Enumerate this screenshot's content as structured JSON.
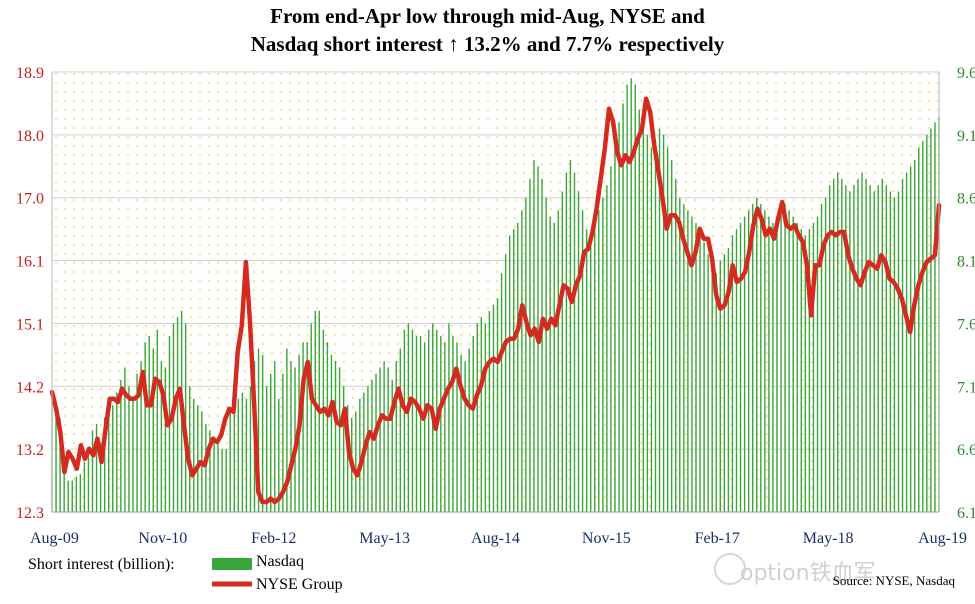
{
  "chart_data": {
    "type": "bar+line",
    "title_lines": [
      "From end-Apr low through mid-Aug, NYSE and",
      "Nasdaq short interest ↑ 13.2% and 7.7% respectively"
    ],
    "x_tick_labels": [
      "Aug-09",
      "Nov-10",
      "Feb-12",
      "May-13",
      "Aug-14",
      "Nov-15",
      "Feb-17",
      "May-18",
      "Aug-19"
    ],
    "left_axis": {
      "ticks": [
        "12.3",
        "13.2",
        "14.2",
        "15.1",
        "16.1",
        "17.0",
        "18.0",
        "18.9"
      ],
      "ylim": [
        12.3,
        18.9
      ]
    },
    "right_axis": {
      "ticks": [
        "6.1",
        "6.6",
        "7.1",
        "7.6",
        "8.1",
        "8.6",
        "9.1",
        "9.6"
      ],
      "ylim": [
        6.1,
        9.6
      ]
    },
    "legend_title": "Short interest (billion):",
    "series": [
      {
        "name": "Nasdaq",
        "axis": "right",
        "color": "#3aa53a",
        "x_start": "2009-08",
        "step": "half-month",
        "values": [
          7.0,
          6.95,
          6.85,
          6.5,
          6.35,
          6.35,
          6.38,
          6.4,
          6.5,
          6.6,
          6.75,
          6.8,
          6.65,
          6.85,
          6.95,
          6.95,
          7.05,
          7.15,
          7.25,
          7.1,
          7.0,
          7.2,
          7.3,
          7.45,
          7.5,
          7.4,
          7.55,
          7.3,
          7.25,
          7.5,
          7.6,
          7.65,
          7.7,
          7.6,
          7.1,
          7.0,
          6.95,
          6.9,
          6.8,
          6.75,
          6.7,
          6.65,
          6.6,
          6.6,
          6.9,
          6.95,
          7.0,
          7.05,
          7.0,
          7.1,
          7.3,
          7.4,
          7.35,
          7.1,
          7.2,
          7.3,
          7.0,
          7.2,
          7.4,
          7.3,
          7.25,
          7.35,
          7.45,
          7.45,
          7.6,
          7.7,
          7.7,
          7.55,
          7.45,
          7.35,
          7.3,
          7.25,
          7.1,
          6.95,
          6.85,
          6.9,
          7.0,
          7.05,
          7.1,
          7.15,
          7.2,
          7.25,
          7.3,
          7.25,
          7.15,
          7.3,
          7.4,
          7.55,
          7.6,
          7.55,
          7.5,
          7.5,
          7.45,
          7.55,
          7.6,
          7.55,
          7.5,
          7.45,
          7.6,
          7.5,
          7.45,
          7.35,
          7.3,
          7.4,
          7.5,
          7.6,
          7.65,
          7.6,
          7.7,
          7.75,
          7.8,
          8.0,
          8.15,
          8.3,
          8.35,
          8.4,
          8.5,
          8.6,
          8.75,
          8.9,
          8.85,
          8.75,
          8.6,
          8.45,
          8.4,
          8.5,
          8.65,
          8.8,
          8.9,
          8.8,
          8.65,
          8.5,
          8.35,
          8.25,
          8.35,
          8.5,
          8.6,
          8.7,
          8.85,
          9.0,
          9.2,
          9.35,
          9.5,
          9.55,
          9.5,
          9.3,
          9.2,
          9.1,
          9.0,
          9.05,
          9.15,
          9.1,
          9.0,
          8.9,
          8.75,
          8.6,
          8.55,
          8.5,
          8.45,
          8.4,
          8.3,
          8.25,
          8.15,
          8.05,
          8.0,
          8.1,
          8.15,
          8.2,
          8.3,
          8.35,
          8.4,
          8.45,
          8.5,
          8.55,
          8.6,
          8.55,
          8.5,
          8.45,
          8.4,
          8.45,
          8.5,
          8.55,
          8.5,
          8.45,
          8.4,
          8.35,
          8.3,
          8.35,
          8.4,
          8.45,
          8.55,
          8.6,
          8.7,
          8.75,
          8.8,
          8.75,
          8.7,
          8.65,
          8.7,
          8.75,
          8.8,
          8.75,
          8.7,
          8.65,
          8.7,
          8.75,
          8.7,
          8.65,
          8.6,
          8.65,
          8.75,
          8.8,
          8.85,
          8.9,
          9.0,
          9.05,
          9.1,
          9.15,
          9.2,
          9.25
        ]
      },
      {
        "name": "NYSE Group",
        "axis": "left",
        "color": "#d42a20",
        "x_start": "2009-08",
        "step": "half-month",
        "values": [
          14.1,
          13.85,
          13.5,
          12.9,
          13.2,
          13.1,
          12.95,
          13.3,
          13.1,
          13.25,
          13.15,
          13.4,
          13.05,
          13.55,
          14.0,
          14.0,
          13.95,
          14.15,
          14.05,
          14.0,
          14.0,
          14.05,
          14.4,
          13.9,
          13.9,
          14.3,
          14.25,
          14.05,
          13.6,
          13.7,
          14.0,
          14.15,
          13.6,
          13.1,
          12.85,
          12.95,
          13.05,
          13.0,
          13.25,
          13.4,
          13.35,
          13.45,
          13.7,
          13.85,
          13.8,
          14.7,
          15.1,
          16.05,
          15.15,
          13.9,
          12.6,
          12.45,
          12.45,
          12.5,
          12.45,
          12.5,
          12.6,
          12.75,
          13.0,
          13.25,
          13.6,
          14.3,
          14.55,
          14.0,
          13.9,
          13.8,
          13.85,
          13.75,
          13.95,
          13.65,
          13.6,
          13.85,
          13.2,
          12.95,
          12.85,
          13.05,
          13.3,
          13.5,
          13.4,
          13.6,
          13.75,
          13.7,
          13.7,
          13.95,
          14.15,
          13.9,
          13.8,
          14.0,
          13.95,
          13.85,
          13.7,
          13.9,
          13.85,
          13.55,
          13.85,
          14.0,
          14.15,
          14.25,
          14.45,
          14.2,
          14.0,
          13.9,
          13.85,
          14.05,
          14.2,
          14.45,
          14.55,
          14.6,
          14.55,
          14.7,
          14.85,
          14.9,
          14.9,
          15.05,
          15.4,
          15.15,
          14.95,
          15.05,
          14.85,
          15.2,
          15.05,
          15.2,
          15.1,
          15.4,
          15.7,
          15.65,
          15.45,
          15.7,
          15.85,
          16.2,
          16.25,
          16.5,
          16.85,
          17.3,
          17.75,
          18.35,
          18.15,
          17.7,
          17.5,
          17.65,
          17.55,
          17.7,
          17.9,
          18.05,
          18.5,
          18.3,
          17.8,
          17.4,
          17.0,
          16.55,
          16.75,
          16.75,
          16.65,
          16.4,
          16.2,
          16.0,
          16.2,
          16.55,
          16.4,
          16.4,
          16.1,
          15.55,
          15.35,
          15.4,
          15.6,
          16.0,
          15.75,
          15.8,
          15.9,
          16.2,
          16.6,
          16.85,
          16.7,
          16.45,
          16.55,
          16.4,
          16.7,
          16.95,
          16.6,
          16.55,
          16.6,
          16.45,
          16.35,
          16.0,
          15.25,
          16.0,
          16.0,
          16.3,
          16.45,
          16.5,
          16.45,
          16.5,
          16.5,
          16.15,
          15.95,
          15.8,
          15.7,
          15.9,
          16.05,
          16.0,
          15.95,
          16.15,
          16.05,
          15.8,
          15.75,
          15.65,
          15.5,
          15.25,
          15.0,
          15.4,
          15.7,
          15.9,
          16.05,
          16.1,
          16.15,
          16.9
        ]
      }
    ],
    "source": "Source: NYSE, Nasdaq",
    "watermark": "option铁血军",
    "colors": {
      "title": "#000000",
      "left_axis_text": "#c8201a",
      "right_axis_text": "#2e8a2e",
      "background_dots": "#f3e89a"
    }
  }
}
